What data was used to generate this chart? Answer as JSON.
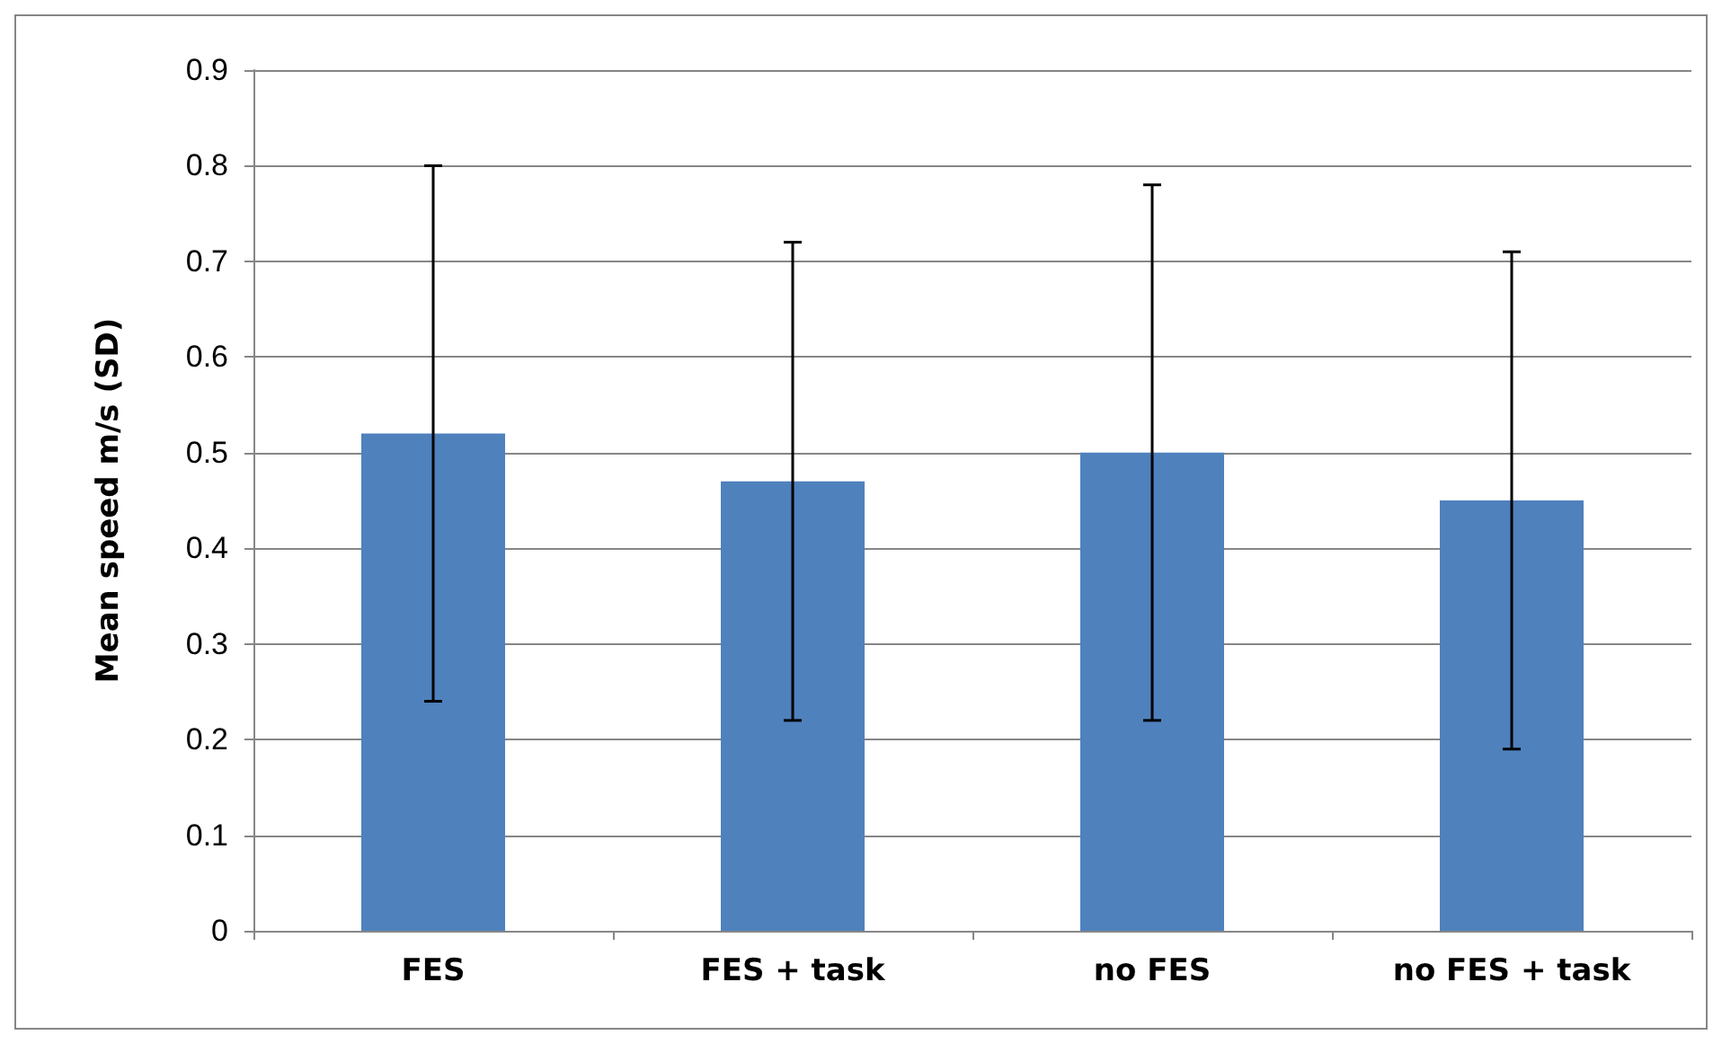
{
  "chart_data": {
    "type": "bar",
    "ylabel": "Mean speed m/s (SD)",
    "categories": [
      "FES",
      "FES + task",
      "no FES",
      "no FES + task"
    ],
    "values": [
      0.52,
      0.47,
      0.5,
      0.45
    ],
    "errors": [
      0.28,
      0.25,
      0.28,
      0.26
    ],
    "color": "#4f81bd",
    "ylim": [
      0,
      0.9
    ],
    "yticks": [
      0,
      0.1,
      0.2,
      0.3,
      0.4,
      0.5,
      0.6,
      0.7,
      0.8,
      0.9
    ],
    "grid": "y"
  }
}
